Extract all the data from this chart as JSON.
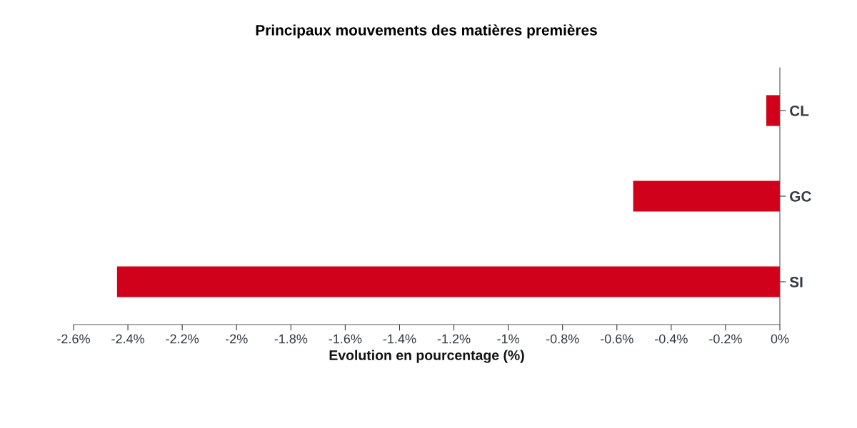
{
  "chart_data": {
    "type": "bar",
    "orientation": "horizontal",
    "title": "Principaux mouvements des matières premières",
    "xlabel": "Evolution en pourcentage (%)",
    "categories": [
      "CL",
      "GC",
      "SI"
    ],
    "values": [
      -0.05,
      -0.54,
      -2.44
    ],
    "color": "#d0021b",
    "xlim": [
      -2.6,
      0
    ],
    "xticks": [
      {
        "value": -2.6,
        "label": "-2.6%"
      },
      {
        "value": -2.4,
        "label": "-2.4%"
      },
      {
        "value": -2.2,
        "label": "-2.2%"
      },
      {
        "value": -2,
        "label": "-2%"
      },
      {
        "value": -1.8,
        "label": "-1.8%"
      },
      {
        "value": -1.6,
        "label": "-1.6%"
      },
      {
        "value": -1.4,
        "label": "-1.4%"
      },
      {
        "value": -1.2,
        "label": "-1.2%"
      },
      {
        "value": -1,
        "label": "-1%"
      },
      {
        "value": -0.8,
        "label": "-0.8%"
      },
      {
        "value": -0.6,
        "label": "-0.6%"
      },
      {
        "value": -0.4,
        "label": "-0.4%"
      },
      {
        "value": -0.2,
        "label": "-0.2%"
      },
      {
        "value": 0,
        "label": "0%"
      }
    ],
    "grid": false,
    "legend": false
  }
}
